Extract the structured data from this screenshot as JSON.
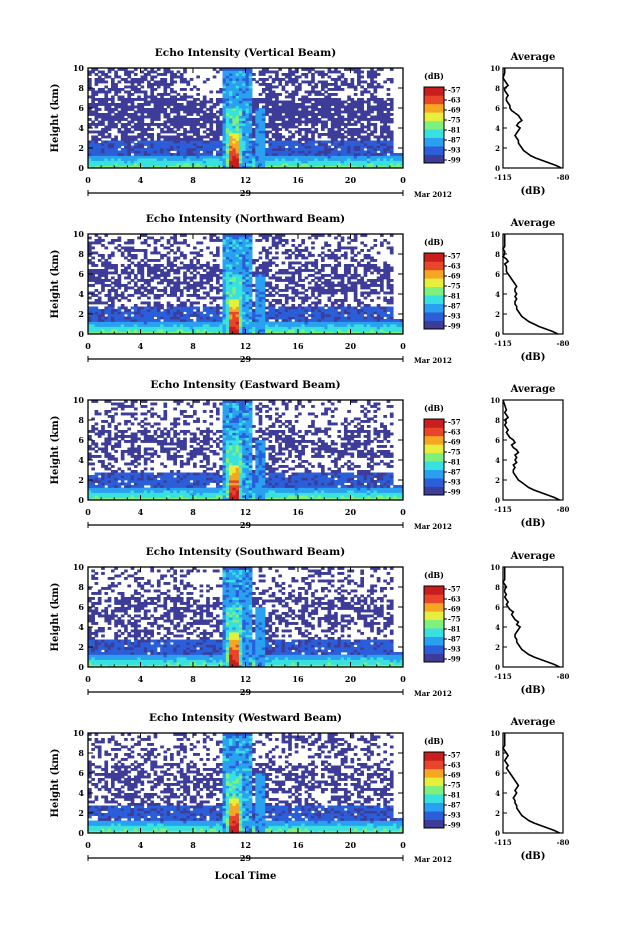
{
  "chart_data": {
    "type": "heatmap",
    "xlabel": "Local Time",
    "ylabel": "Height (km)",
    "x_ticks": [
      "0",
      "4",
      "8",
      "12",
      "16",
      "20",
      "0"
    ],
    "xlim": [
      0,
      24
    ],
    "y_ticks": [
      "0",
      "2",
      "4",
      "6",
      "8",
      "10"
    ],
    "ylim": [
      0,
      10
    ],
    "date_day": "29",
    "date_month": "Mar 2012",
    "colorbar": {
      "unit": "(dB)",
      "ticks": [
        "-57",
        "-63",
        "-69",
        "-75",
        "-81",
        "-87",
        "-93",
        "-99"
      ],
      "colors": [
        "#3d3d99",
        "#2b5fd9",
        "#2aa1f0",
        "#39e0e0",
        "#7ef07e",
        "#e6f03c",
        "#f5a623",
        "#e8452a",
        "#c81e1e"
      ]
    },
    "profile": {
      "title": "Average",
      "xlabel": "(dB)",
      "x_ticks": [
        "-115",
        "-80"
      ],
      "xlim": [
        -115,
        -80
      ],
      "y_ticks": [
        "0",
        "2",
        "4",
        "6",
        "8",
        "10"
      ]
    },
    "panels": [
      {
        "title": "Echo Intensity (Vertical Beam)",
        "date_day": "29",
        "profile_heights": [
          0,
          0.25,
          0.5,
          0.75,
          1,
          1.25,
          1.5,
          1.75,
          2,
          2.25,
          2.5,
          2.75,
          3,
          3.25,
          3.5,
          3.75,
          4,
          4.25,
          4.5,
          4.75,
          5,
          5.25,
          5.5,
          5.75,
          6,
          6.25,
          6.5,
          6.75,
          7,
          7.25,
          7.5,
          7.75,
          8,
          8.25,
          8.5,
          8.75,
          9,
          9.5,
          10
        ],
        "profile_values": [
          -81,
          -84,
          -88,
          -92,
          -96,
          -99,
          -101,
          -103,
          -104,
          -105,
          -106,
          -106,
          -107,
          -108,
          -107,
          -106,
          -105,
          -107,
          -106,
          -104,
          -105,
          -106,
          -108,
          -110,
          -111,
          -111,
          -112,
          -113,
          -113,
          -112,
          -113,
          -114,
          -114,
          -112,
          -113,
          -114,
          -115,
          -114,
          -114
        ]
      },
      {
        "title": "Echo Intensity (Northward Beam)",
        "date_day": "29",
        "profile_heights": [
          0,
          0.25,
          0.5,
          0.75,
          1,
          1.25,
          1.5,
          1.75,
          2,
          2.25,
          2.5,
          2.75,
          3,
          3.25,
          3.5,
          3.75,
          4,
          4.25,
          4.5,
          4.75,
          5,
          5.25,
          5.5,
          5.75,
          6,
          6.25,
          6.5,
          6.75,
          7,
          7.25,
          7.5,
          7.75,
          8,
          8.25,
          8.5,
          8.75,
          9,
          9.5,
          10
        ],
        "profile_values": [
          -83,
          -86,
          -90,
          -94,
          -97,
          -100,
          -102,
          -104,
          -105,
          -106,
          -107,
          -107,
          -108,
          -108,
          -107,
          -108,
          -107,
          -108,
          -108,
          -107,
          -108,
          -109,
          -110,
          -111,
          -112,
          -113,
          -113,
          -113,
          -114,
          -112,
          -113,
          -115,
          -114,
          -114,
          -115,
          -114,
          -114,
          -114,
          -114
        ]
      },
      {
        "title": "Echo Intensity (Eastward Beam)",
        "date_day": "29",
        "profile_heights": [
          0,
          0.25,
          0.5,
          0.75,
          1,
          1.25,
          1.5,
          1.75,
          2,
          2.25,
          2.5,
          2.75,
          3,
          3.25,
          3.5,
          3.75,
          4,
          4.25,
          4.5,
          4.75,
          5,
          5.25,
          5.5,
          5.75,
          6,
          6.25,
          6.5,
          6.75,
          7,
          7.25,
          7.5,
          7.75,
          8,
          8.25,
          8.5,
          8.75,
          9,
          9.5,
          10
        ],
        "profile_values": [
          -82,
          -85,
          -89,
          -93,
          -97,
          -100,
          -102,
          -104,
          -106,
          -107,
          -108,
          -109,
          -109,
          -108,
          -109,
          -107,
          -108,
          -107,
          -108,
          -106,
          -107,
          -109,
          -110,
          -108,
          -109,
          -111,
          -112,
          -113,
          -112,
          -113,
          -114,
          -113,
          -114,
          -112,
          -113,
          -114,
          -113,
          -114,
          -115
        ]
      },
      {
        "title": "Echo Intensity (Southward Beam)",
        "date_day": "29",
        "profile_heights": [
          0,
          0.25,
          0.5,
          0.75,
          1,
          1.25,
          1.5,
          1.75,
          2,
          2.25,
          2.5,
          2.75,
          3,
          3.25,
          3.5,
          3.75,
          4,
          4.25,
          4.5,
          4.75,
          5,
          5.25,
          5.5,
          5.75,
          6,
          6.25,
          6.5,
          6.75,
          7,
          7.25,
          7.5,
          7.75,
          8,
          8.25,
          8.5,
          8.75,
          9,
          9.5,
          10
        ],
        "profile_values": [
          -82,
          -85,
          -89,
          -93,
          -97,
          -100,
          -102,
          -104,
          -105,
          -106,
          -107,
          -107,
          -108,
          -108,
          -107,
          -106,
          -105,
          -107,
          -106,
          -108,
          -109,
          -110,
          -109,
          -111,
          -112,
          -113,
          -112,
          -113,
          -114,
          -113,
          -114,
          -114,
          -113,
          -114,
          -115,
          -114,
          -114,
          -114,
          -114
        ]
      },
      {
        "title": "Echo Intensity (Westward Beam)",
        "date_day": "29",
        "profile_heights": [
          0,
          0.25,
          0.5,
          0.75,
          1,
          1.25,
          1.5,
          1.75,
          2,
          2.25,
          2.5,
          2.75,
          3,
          3.25,
          3.5,
          3.75,
          4,
          4.25,
          4.5,
          4.75,
          5,
          5.25,
          5.5,
          5.75,
          6,
          6.25,
          6.5,
          6.75,
          7,
          7.25,
          7.5,
          7.75,
          8,
          8.25,
          8.5,
          8.75,
          9,
          9.5,
          10
        ],
        "profile_values": [
          -82,
          -85,
          -89,
          -93,
          -97,
          -100,
          -102,
          -104,
          -105,
          -106,
          -107,
          -107,
          -108,
          -108,
          -109,
          -108,
          -107,
          -108,
          -107,
          -106,
          -107,
          -108,
          -109,
          -110,
          -111,
          -112,
          -113,
          -112,
          -113,
          -114,
          -113,
          -112,
          -113,
          -114,
          -115,
          -114,
          -114,
          -114,
          -114
        ]
      }
    ]
  }
}
